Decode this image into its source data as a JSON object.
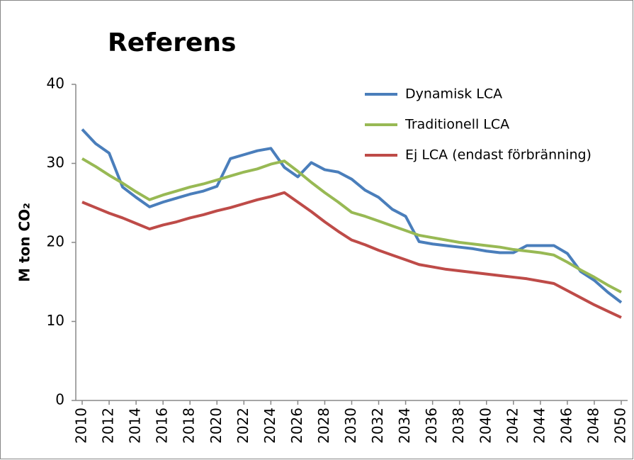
{
  "chart_data": {
    "type": "line",
    "title": "Referens",
    "ylabel": "M ton CO₂",
    "x": [
      2010,
      2011,
      2012,
      2013,
      2014,
      2015,
      2016,
      2017,
      2018,
      2019,
      2020,
      2021,
      2022,
      2023,
      2024,
      2025,
      2026,
      2027,
      2028,
      2029,
      2030,
      2031,
      2032,
      2033,
      2034,
      2035,
      2036,
      2037,
      2038,
      2039,
      2040,
      2041,
      2042,
      2043,
      2044,
      2045,
      2046,
      2047,
      2048,
      2049,
      2050
    ],
    "series": [
      {
        "name": "Dynamisk LCA",
        "color": "#4a7ebb",
        "values": [
          34.3,
          32.5,
          31.3,
          27.0,
          25.7,
          24.5,
          25.1,
          25.6,
          26.1,
          26.5,
          27.1,
          30.6,
          31.1,
          31.6,
          31.9,
          29.5,
          28.3,
          30.1,
          29.2,
          28.9,
          28.0,
          26.6,
          25.7,
          24.2,
          23.3,
          20.1,
          19.8,
          19.6,
          19.4,
          19.2,
          18.9,
          18.7,
          18.7,
          19.6,
          19.6,
          19.6,
          18.6,
          16.3,
          15.2,
          13.7,
          12.4
        ]
      },
      {
        "name": "Traditionell LCA",
        "color": "#98b954",
        "values": [
          30.6,
          29.6,
          28.5,
          27.5,
          26.4,
          25.4,
          26.0,
          26.5,
          27.0,
          27.4,
          27.9,
          28.4,
          28.9,
          29.3,
          29.9,
          30.3,
          29.0,
          27.6,
          26.3,
          25.1,
          23.8,
          23.3,
          22.7,
          22.1,
          21.5,
          20.9,
          20.6,
          20.3,
          20.0,
          19.8,
          19.6,
          19.4,
          19.1,
          18.9,
          18.7,
          18.4,
          17.5,
          16.5,
          15.6,
          14.6,
          13.7
        ]
      },
      {
        "name": "Ej LCA (endast förbränning)",
        "color": "#be4b48",
        "values": [
          25.1,
          24.4,
          23.7,
          23.1,
          22.4,
          21.7,
          22.2,
          22.6,
          23.1,
          23.5,
          24.0,
          24.4,
          24.9,
          25.4,
          25.8,
          26.3,
          25.1,
          23.9,
          22.6,
          21.4,
          20.3,
          19.7,
          19.0,
          18.4,
          17.8,
          17.2,
          16.9,
          16.6,
          16.4,
          16.2,
          16.0,
          15.8,
          15.6,
          15.4,
          15.1,
          14.8,
          13.9,
          13.0,
          12.1,
          11.3,
          10.5
        ]
      }
    ],
    "xlim": [
      2010,
      2050
    ],
    "xticks": [
      2010,
      2012,
      2014,
      2016,
      2018,
      2020,
      2022,
      2024,
      2026,
      2028,
      2030,
      2032,
      2034,
      2036,
      2038,
      2040,
      2042,
      2044,
      2046,
      2048,
      2050
    ],
    "ylim": [
      0,
      40
    ],
    "yticks": [
      0,
      10,
      20,
      30,
      40
    ],
    "grid": false,
    "legend": "upper right"
  }
}
